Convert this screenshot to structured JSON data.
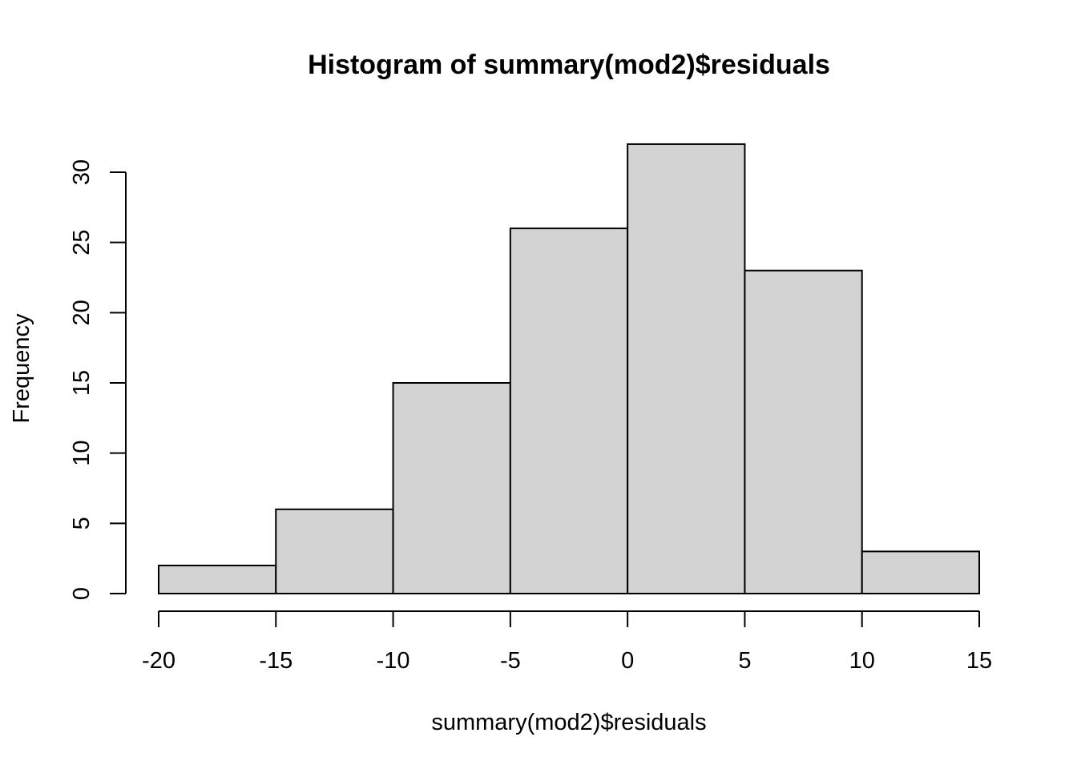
{
  "chart_data": {
    "type": "bar",
    "subtype": "histogram",
    "title": "Histogram of summary(mod2)$residuals",
    "xlabel": "summary(mod2)$residuals",
    "ylabel": "Frequency",
    "bins": [
      {
        "from": -20,
        "to": -15,
        "count": 2
      },
      {
        "from": -15,
        "to": -10,
        "count": 6
      },
      {
        "from": -10,
        "to": -5,
        "count": 15
      },
      {
        "from": -5,
        "to": 0,
        "count": 26
      },
      {
        "from": 0,
        "to": 5,
        "count": 32
      },
      {
        "from": 5,
        "to": 10,
        "count": 23
      },
      {
        "from": 10,
        "to": 15,
        "count": 3
      }
    ],
    "xticks": [
      "-20",
      "-15",
      "-10",
      "-5",
      "0",
      "5",
      "10",
      "15"
    ],
    "yticks": [
      "0",
      "5",
      "10",
      "15",
      "20",
      "25",
      "30"
    ],
    "xlim": [
      -20,
      15
    ],
    "ylim": [
      0,
      32
    ],
    "grid": false,
    "bar_fill": "#d3d3d3",
    "bar_stroke": "#000000"
  }
}
